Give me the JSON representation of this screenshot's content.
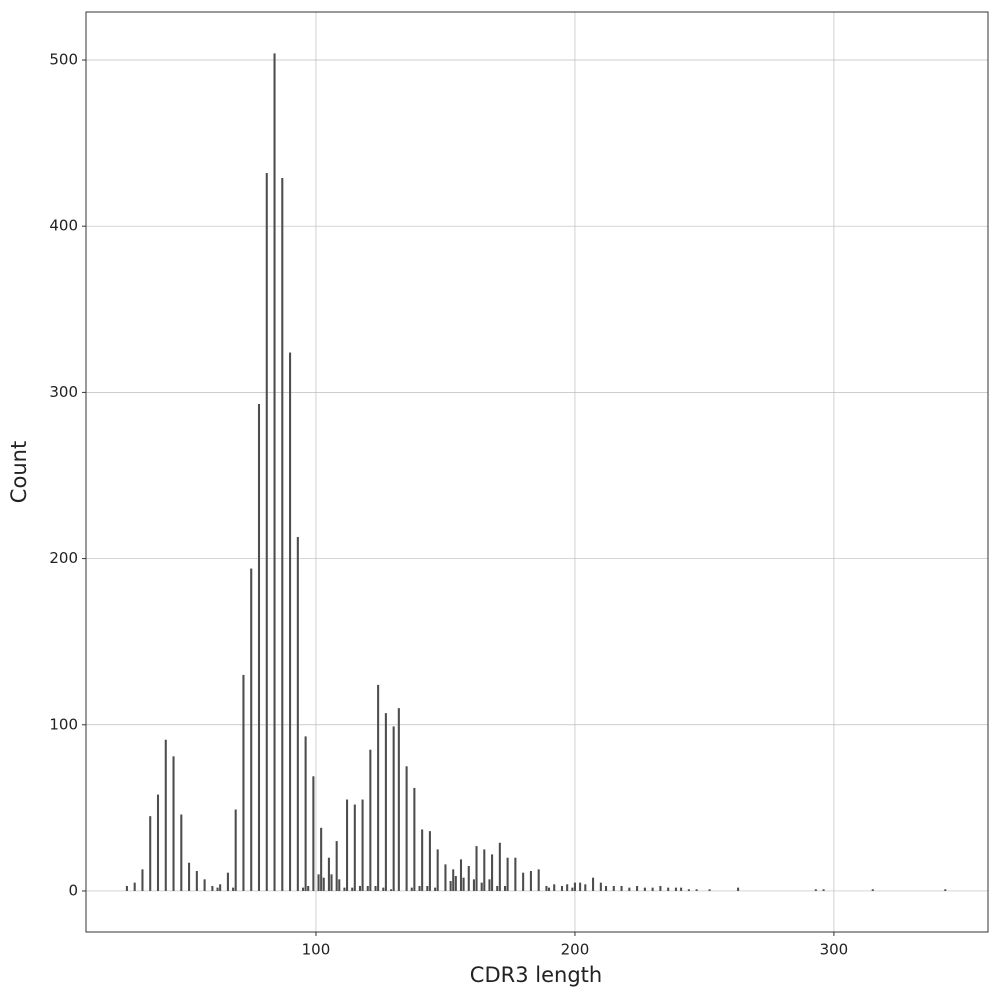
{
  "chart_data": {
    "type": "bar",
    "x_label": "CDR3 length",
    "y_label": "Count",
    "x": [
      27,
      30,
      33,
      36,
      39,
      42,
      45,
      48,
      51,
      54,
      57,
      60,
      62,
      63,
      66,
      68,
      69,
      72,
      75,
      78,
      81,
      84,
      87,
      90,
      93,
      95,
      96,
      97,
      99,
      101,
      102,
      103,
      105,
      106,
      108,
      109,
      111,
      112,
      114,
      115,
      117,
      118,
      120,
      121,
      123,
      124,
      126,
      127,
      129,
      130,
      132,
      135,
      137,
      138,
      140,
      141,
      143,
      144,
      146,
      147,
      150,
      152,
      153,
      154,
      156,
      157,
      159,
      161,
      162,
      164,
      165,
      167,
      168,
      170,
      171,
      173,
      174,
      177,
      180,
      183,
      186,
      189,
      190,
      192,
      195,
      197,
      199,
      200,
      202,
      204,
      207,
      210,
      212,
      215,
      218,
      221,
      224,
      227,
      230,
      233,
      236,
      239,
      241,
      244,
      247,
      252,
      263,
      293,
      296,
      315,
      343
    ],
    "values": [
      3,
      5,
      13,
      45,
      58,
      91,
      81,
      46,
      17,
      12,
      7,
      3,
      2,
      4,
      11,
      2,
      49,
      130,
      194,
      293,
      432,
      504,
      429,
      324,
      213,
      2,
      93,
      3,
      69,
      10,
      38,
      8,
      20,
      10,
      30,
      7,
      2,
      55,
      2,
      52,
      3,
      55,
      3,
      85,
      3,
      124,
      2,
      107,
      1,
      99,
      110,
      75,
      2,
      62,
      3,
      37,
      3,
      36,
      2,
      25,
      16,
      6,
      13,
      9,
      19,
      8,
      15,
      7,
      27,
      5,
      25,
      7,
      22,
      3,
      29,
      3,
      20,
      20,
      11,
      12,
      13,
      3,
      2,
      4,
      3,
      4,
      2,
      5,
      5,
      4,
      8,
      5,
      3,
      3,
      3,
      2,
      3,
      2,
      2,
      3,
      2,
      2,
      2,
      1,
      1,
      1,
      2,
      1,
      1,
      1,
      1
    ],
    "color": "#4d4d4d",
    "xlim": [
      11.2,
      359.5
    ],
    "xticks": [
      100,
      200,
      300
    ],
    "ylim": [
      -24.7,
      528.9
    ],
    "yticks": [
      0,
      100,
      200,
      300,
      400,
      500
    ],
    "grid": true
  }
}
